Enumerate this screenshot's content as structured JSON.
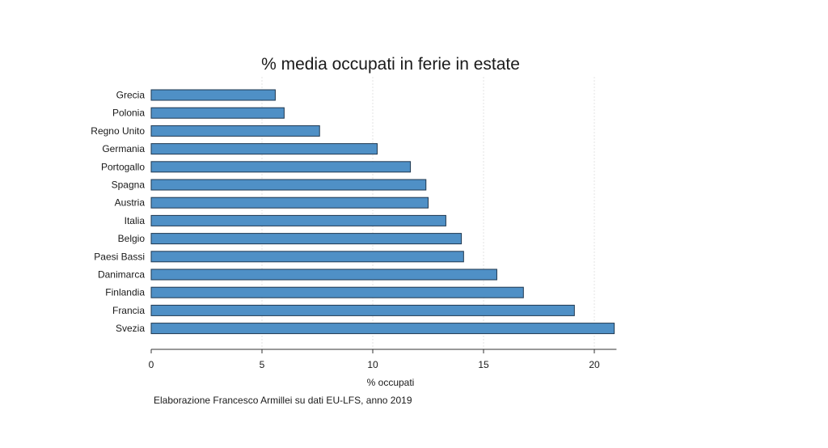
{
  "chart_data": {
    "type": "bar",
    "orientation": "horizontal",
    "title": "% media occupati in ferie in estate",
    "xlabel": "% occupati",
    "ylabel": "",
    "categories": [
      "Grecia",
      "Polonia",
      "Regno Unito",
      "Germania",
      "Portogallo",
      "Spagna",
      "Austria",
      "Italia",
      "Belgio",
      "Paesi Bassi",
      "Danimarca",
      "Finlandia",
      "Francia",
      "Svezia"
    ],
    "values": [
      5.6,
      6.0,
      7.6,
      10.2,
      11.7,
      12.4,
      12.5,
      13.3,
      14.0,
      14.1,
      15.6,
      16.8,
      19.1,
      20.9
    ],
    "xlim": [
      0,
      21
    ],
    "xticks": [
      0,
      5,
      10,
      15,
      20
    ],
    "grid": true,
    "bar_color": "#4f90c6",
    "bar_edge_color": "#1f3850",
    "note": "Elaborazione Francesco Armillei su dati EU-LFS, anno 2019"
  }
}
